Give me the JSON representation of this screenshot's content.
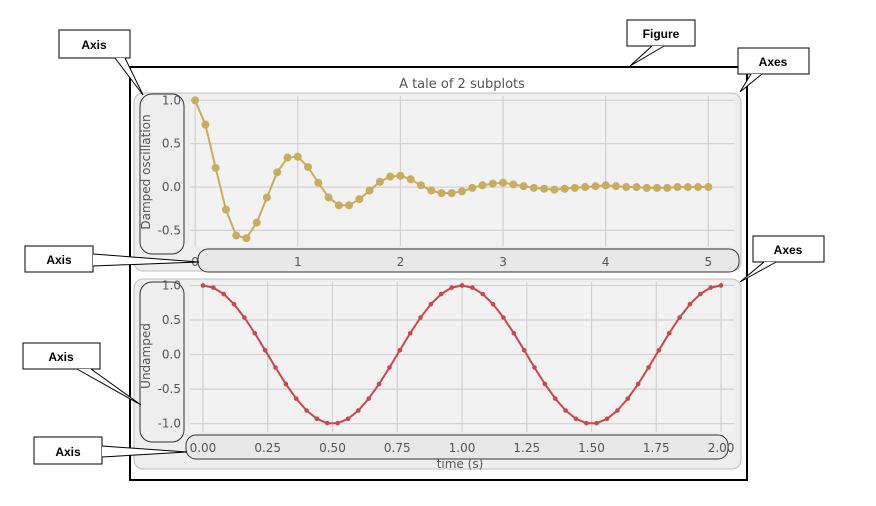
{
  "annotations": {
    "figure": "Figure",
    "axes_top": "Axes",
    "axes_bottom": "Axes",
    "axis_top_y": "Axis",
    "axis_top_x": "Axis",
    "axis_bottom_y": "Axis",
    "axis_bottom_x": "Axis"
  },
  "chart_data": [
    {
      "type": "line",
      "title": "A tale of 2 subplots",
      "xlabel": "",
      "ylabel": "Damped oscillation",
      "xlim": [
        -0.05,
        5.25
      ],
      "ylim": [
        -0.68,
        1.05
      ],
      "xticks": [
        "0",
        "1",
        "2",
        "3",
        "4",
        "5"
      ],
      "yticks": [
        "1.0",
        "0.5",
        "0.0",
        "-0.5"
      ],
      "color": "#c8ad5e",
      "series": [
        {
          "name": "Damped oscillation",
          "x": [
            0.0,
            0.1,
            0.2,
            0.3,
            0.4,
            0.5,
            0.6,
            0.7,
            0.8,
            0.9,
            1.0,
            1.1,
            1.2,
            1.3,
            1.4,
            1.5,
            1.6,
            1.7,
            1.8,
            1.9,
            2.0,
            2.1,
            2.2,
            2.3,
            2.4,
            2.5,
            2.6,
            2.7,
            2.8,
            2.9,
            3.0,
            3.1,
            3.2,
            3.3,
            3.4,
            3.5,
            3.6,
            3.7,
            3.8,
            3.9,
            4.0,
            4.1,
            4.2,
            4.3,
            4.4,
            4.5,
            4.6,
            4.7,
            4.8,
            4.9,
            5.0
          ],
          "y": [
            1.0,
            0.72,
            0.22,
            -0.26,
            -0.56,
            -0.59,
            -0.41,
            -0.12,
            0.17,
            0.34,
            0.35,
            0.23,
            0.05,
            -0.12,
            -0.21,
            -0.21,
            -0.14,
            -0.04,
            0.06,
            0.12,
            0.13,
            0.09,
            0.02,
            -0.04,
            -0.07,
            -0.07,
            -0.05,
            -0.01,
            0.02,
            0.04,
            0.05,
            0.03,
            0.01,
            -0.01,
            -0.02,
            -0.03,
            -0.02,
            -0.01,
            0.0,
            0.01,
            0.02,
            0.01,
            0.0,
            0.0,
            -0.01,
            -0.01,
            -0.01,
            0.0,
            0.0,
            0.0,
            0.0
          ]
        }
      ]
    },
    {
      "type": "line",
      "title": "",
      "xlabel": "time (s)",
      "ylabel": "Undamped",
      "xlim": [
        -0.05,
        2.05
      ],
      "ylim": [
        -1.12,
        1.05
      ],
      "xticks": [
        "0.00",
        "0.25",
        "0.50",
        "0.75",
        "1.00",
        "1.25",
        "1.50",
        "1.75",
        "2.00"
      ],
      "yticks": [
        "1.0",
        "0.5",
        "0.0",
        "-0.5",
        "-1.0"
      ],
      "color": "#c9474d",
      "series": [
        {
          "name": "Undamped",
          "x": [
            0.0,
            0.04,
            0.08,
            0.12,
            0.16,
            0.2,
            0.24,
            0.28,
            0.32,
            0.36,
            0.4,
            0.44,
            0.48,
            0.52,
            0.56,
            0.6,
            0.64,
            0.68,
            0.72,
            0.76,
            0.8,
            0.84,
            0.88,
            0.92,
            0.96,
            1.0,
            1.04,
            1.08,
            1.12,
            1.16,
            1.2,
            1.24,
            1.28,
            1.32,
            1.36,
            1.4,
            1.44,
            1.48,
            1.52,
            1.56,
            1.6,
            1.64,
            1.68,
            1.72,
            1.76,
            1.8,
            1.84,
            1.88,
            1.92,
            1.96,
            2.0
          ],
          "y": [
            1.0,
            0.969,
            0.876,
            0.729,
            0.536,
            0.309,
            0.063,
            -0.187,
            -0.426,
            -0.637,
            -0.809,
            -0.929,
            -0.992,
            -0.992,
            -0.929,
            -0.809,
            -0.637,
            -0.426,
            -0.187,
            0.063,
            0.309,
            0.536,
            0.729,
            0.876,
            0.969,
            1.0,
            0.969,
            0.876,
            0.729,
            0.536,
            0.309,
            0.063,
            -0.187,
            -0.426,
            -0.637,
            -0.809,
            -0.929,
            -0.992,
            -0.992,
            -0.929,
            -0.809,
            -0.637,
            -0.426,
            -0.187,
            0.063,
            0.309,
            0.536,
            0.729,
            0.876,
            0.969,
            1.0
          ]
        }
      ]
    }
  ]
}
